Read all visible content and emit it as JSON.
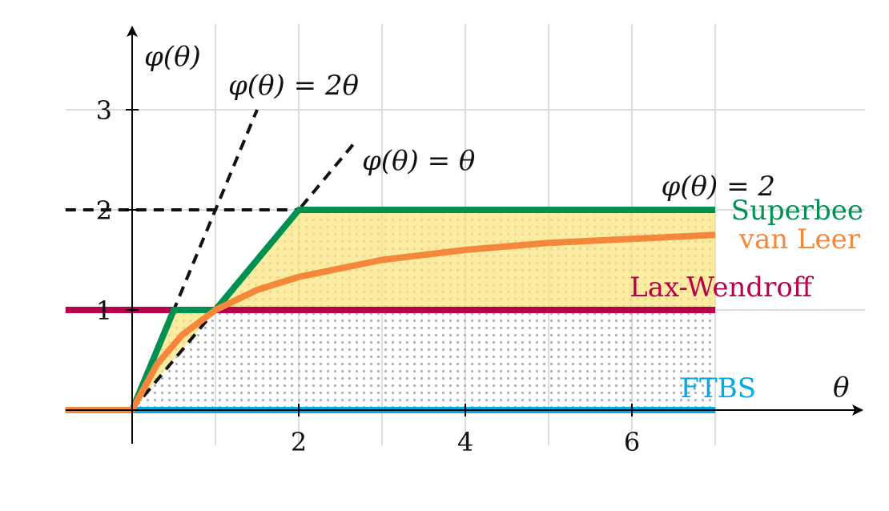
{
  "chart_data": {
    "type": "line",
    "title": "",
    "xlabel": "θ",
    "ylabel": "φ(θ)",
    "xlim": [
      -0.8,
      8.8
    ],
    "ylim": [
      -0.35,
      3.85
    ],
    "xticks": [
      2,
      4,
      6
    ],
    "yticks": [
      1,
      2,
      3
    ],
    "grid": true,
    "shaded_regions": [
      {
        "name": "region-between-lw-and-superbee",
        "color": "#f9e683"
      },
      {
        "name": "dotted-tvd-region",
        "color": "#b0b0b0"
      }
    ],
    "reference_lines": [
      {
        "label": "φ(θ) = 2θ",
        "x": [
          0,
          1.5
        ],
        "y": [
          0,
          3
        ]
      },
      {
        "label": "φ(θ) = θ",
        "x": [
          0,
          2.7
        ],
        "y": [
          0,
          2.7
        ]
      },
      {
        "label": "φ(θ) = 2",
        "x": [
          -0.8,
          2
        ],
        "y": [
          2,
          2
        ]
      }
    ],
    "series": [
      {
        "name": "Superbee",
        "color": "#009150",
        "x": [
          -0.8,
          0,
          0.5,
          1,
          2,
          7
        ],
        "y": [
          0,
          0,
          1,
          1,
          2,
          2
        ]
      },
      {
        "name": "van Leer",
        "color": "#f5873a",
        "x": [
          -0.8,
          0,
          0.3,
          0.6,
          1,
          1.5,
          2,
          3,
          4,
          5,
          6,
          7
        ],
        "y": [
          0,
          0,
          0.46,
          0.75,
          1,
          1.2,
          1.33,
          1.5,
          1.6,
          1.67,
          1.71,
          1.75
        ]
      },
      {
        "name": "Lax-Wendroff",
        "color": "#b8004d",
        "x": [
          -0.8,
          7
        ],
        "y": [
          1,
          1
        ]
      },
      {
        "name": "FTBS",
        "color": "#00a9e8",
        "x": [
          0,
          7
        ],
        "y": [
          0,
          0
        ]
      }
    ]
  }
}
